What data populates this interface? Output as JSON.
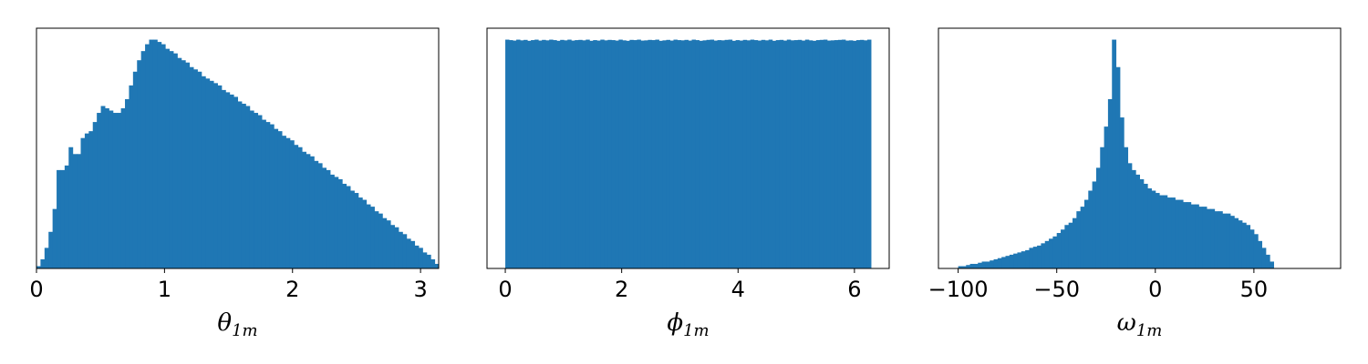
{
  "colors": {
    "bar": "#1f77b4",
    "frame": "#000000",
    "background": "#ffffff"
  },
  "chart_data": [
    {
      "type": "bar",
      "kind": "histogram",
      "xlabel_symbol": "θ",
      "xlabel_sub": "1m",
      "xlim": [
        0,
        3.14159
      ],
      "xticks": [
        0,
        1,
        2,
        3
      ],
      "xtick_labels": [
        "0",
        "1",
        "2",
        "3"
      ],
      "ylim": [
        0,
        1.05
      ],
      "yticks_visible": false,
      "bin_start": 0,
      "bin_width": 0.0314159,
      "values": [
        0.01,
        0.04,
        0.09,
        0.16,
        0.26,
        0.43,
        0.43,
        0.45,
        0.53,
        0.5,
        0.5,
        0.57,
        0.59,
        0.6,
        0.64,
        0.68,
        0.71,
        0.7,
        0.69,
        0.68,
        0.68,
        0.7,
        0.74,
        0.8,
        0.86,
        0.91,
        0.95,
        0.98,
        1.0,
        1.0,
        0.99,
        0.98,
        0.96,
        0.95,
        0.94,
        0.92,
        0.91,
        0.9,
        0.88,
        0.87,
        0.86,
        0.84,
        0.83,
        0.82,
        0.81,
        0.8,
        0.78,
        0.77,
        0.76,
        0.75,
        0.73,
        0.72,
        0.71,
        0.69,
        0.68,
        0.67,
        0.65,
        0.64,
        0.63,
        0.61,
        0.6,
        0.58,
        0.57,
        0.56,
        0.54,
        0.53,
        0.51,
        0.5,
        0.49,
        0.47,
        0.46,
        0.44,
        0.43,
        0.41,
        0.4,
        0.39,
        0.37,
        0.36,
        0.34,
        0.33,
        0.31,
        0.3,
        0.28,
        0.27,
        0.25,
        0.24,
        0.22,
        0.21,
        0.19,
        0.18,
        0.16,
        0.15,
        0.13,
        0.12,
        0.1,
        0.09,
        0.07,
        0.06,
        0.04,
        0.02
      ]
    },
    {
      "type": "bar",
      "kind": "histogram",
      "xlabel_symbol": "ϕ",
      "xlabel_sub": "1m",
      "xlim": [
        -0.31416,
        6.59734
      ],
      "xticks": [
        0,
        2,
        4,
        6
      ],
      "xtick_labels": [
        "0",
        "2",
        "4",
        "6"
      ],
      "ylim": [
        0,
        1.05
      ],
      "yticks_visible": false,
      "bin_start": 0,
      "bin_width": 0.0628318,
      "values": [
        1.0,
        0.998,
        0.996,
        1.0,
        0.997,
        0.999,
        0.995,
        0.998,
        1.0,
        0.996,
        0.999,
        0.997,
        1.0,
        0.998,
        0.995,
        0.999,
        0.997,
        1.0,
        0.996,
        0.998,
        0.999,
        0.997,
        1.0,
        0.995,
        0.998,
        0.996,
        1.0,
        0.997,
        0.999,
        0.998,
        0.996,
        1.0,
        0.997,
        0.995,
        0.999,
        0.998,
        1.0,
        0.996,
        0.997,
        0.999,
        0.998,
        1.0,
        0.995,
        0.997,
        0.999,
        0.996,
        1.0,
        0.998,
        0.997,
        0.999,
        0.996,
        1.0,
        0.998,
        0.995,
        0.997,
        0.999,
        1.0,
        0.996,
        0.998,
        0.997,
        0.999,
        1.0,
        0.995,
        0.998,
        0.996,
        0.999,
        0.997,
        1.0,
        0.998,
        0.996,
        0.999,
        0.997,
        1.0,
        0.995,
        0.998,
        0.999,
        0.996,
        1.0,
        0.997,
        0.998,
        0.999,
        0.996,
        1.0,
        0.997,
        0.995,
        0.998,
        0.999,
        1.0,
        0.996,
        0.997,
        0.998,
        0.999,
        1.0,
        0.996,
        0.997,
        0.995,
        0.998,
        0.999,
        0.997,
        1.0
      ]
    },
    {
      "type": "bar",
      "kind": "histogram",
      "xlabel_symbol": "ω",
      "xlabel_sub": "1m",
      "xlim": [
        -110,
        94
      ],
      "xticks": [
        -100,
        -50,
        0,
        50
      ],
      "xtick_labels": [
        "−100",
        "−50",
        "0",
        "50"
      ],
      "ylim": [
        0,
        1.05
      ],
      "yticks_visible": false,
      "bin_start": -100,
      "bin_width": 2,
      "values": [
        0.01,
        0.01,
        0.015,
        0.02,
        0.02,
        0.025,
        0.03,
        0.03,
        0.035,
        0.04,
        0.045,
        0.05,
        0.055,
        0.06,
        0.065,
        0.07,
        0.075,
        0.08,
        0.09,
        0.095,
        0.1,
        0.11,
        0.12,
        0.13,
        0.14,
        0.155,
        0.17,
        0.19,
        0.2,
        0.22,
        0.25,
        0.27,
        0.3,
        0.34,
        0.38,
        0.44,
        0.53,
        0.62,
        0.74,
        1.0,
        0.88,
        0.66,
        0.53,
        0.46,
        0.43,
        0.41,
        0.39,
        0.37,
        0.35,
        0.34,
        0.33,
        0.32,
        0.32,
        0.31,
        0.31,
        0.3,
        0.3,
        0.29,
        0.29,
        0.28,
        0.28,
        0.27,
        0.27,
        0.26,
        0.26,
        0.25,
        0.25,
        0.24,
        0.24,
        0.23,
        0.22,
        0.21,
        0.2,
        0.19,
        0.17,
        0.15,
        0.12,
        0.09,
        0.06,
        0.03,
        0.0,
        0.0,
        0.0,
        0.0,
        0.0,
        0.0,
        0.0,
        0.0,
        0.0,
        0.0,
        0.0,
        0.0
      ]
    }
  ]
}
